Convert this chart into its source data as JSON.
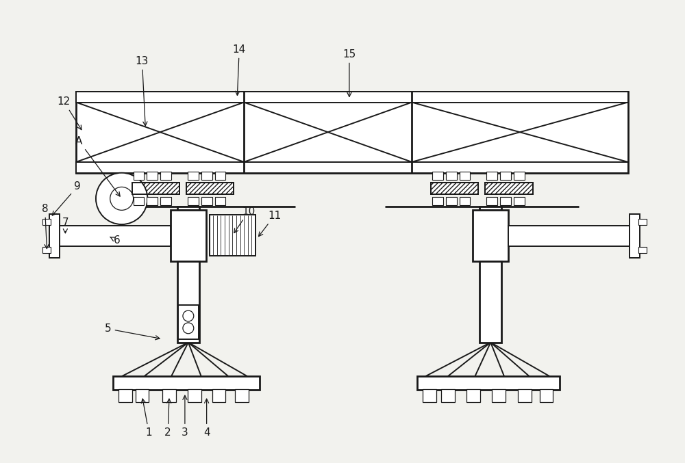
{
  "bg_color": "#f2f2ee",
  "line_color": "#1a1a1a",
  "lw": 1.4,
  "lw2": 2.0,
  "fig_width": 10.0,
  "fig_height": 6.77
}
